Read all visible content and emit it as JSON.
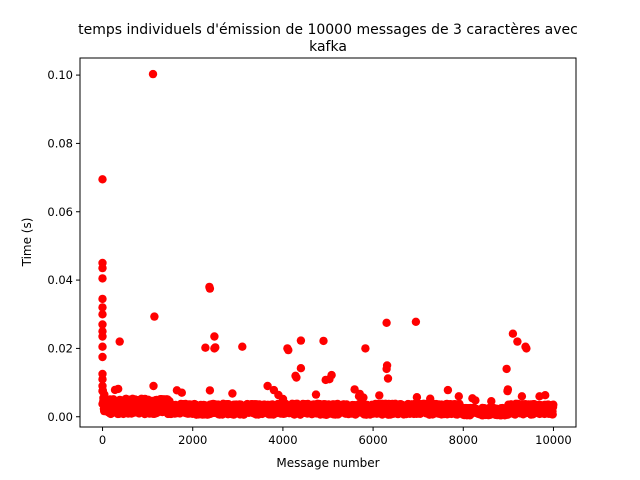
{
  "chart_data": {
    "type": "scatter",
    "title_lines": [
      "temps individuels d'émission de 10000 messages de 3 caractères avec",
      "kafka"
    ],
    "xlabel": "Message number",
    "ylabel": "Time (s)",
    "xlim": [
      -500,
      10500
    ],
    "ylim": [
      -0.003,
      0.105
    ],
    "xticks": [
      0,
      2000,
      4000,
      6000,
      8000,
      10000
    ],
    "xtick_labels": [
      "0",
      "2000",
      "4000",
      "6000",
      "8000",
      "10000"
    ],
    "yticks": [
      0.0,
      0.02,
      0.04,
      0.06,
      0.08,
      0.1
    ],
    "ytick_labels": [
      "0.00",
      "0.02",
      "0.04",
      "0.06",
      "0.08",
      "0.10"
    ],
    "grid": false,
    "marker_color": "#ff0000",
    "outliers": [
      [
        0,
        0.0695
      ],
      [
        0,
        0.045
      ],
      [
        0,
        0.0435
      ],
      [
        0,
        0.0405
      ],
      [
        0,
        0.0345
      ],
      [
        0,
        0.032
      ],
      [
        0,
        0.03
      ],
      [
        0,
        0.027
      ],
      [
        0,
        0.025
      ],
      [
        0,
        0.0235
      ],
      [
        0,
        0.0205
      ],
      [
        0,
        0.0175
      ],
      [
        0,
        0.0125
      ],
      [
        0,
        0.011
      ],
      [
        0,
        0.009
      ],
      [
        0,
        0.0075
      ],
      [
        40,
        0.0065
      ],
      [
        20,
        0.0055
      ],
      [
        380,
        0.022
      ],
      [
        1120,
        0.1003
      ],
      [
        1150,
        0.0293
      ],
      [
        1130,
        0.009
      ],
      [
        2280,
        0.0202
      ],
      [
        2370,
        0.038
      ],
      [
        2380,
        0.0375
      ],
      [
        2480,
        0.0235
      ],
      [
        2500,
        0.0203
      ],
      [
        2480,
        0.02
      ],
      [
        2380,
        0.0077
      ],
      [
        2880,
        0.0068
      ],
      [
        3100,
        0.0205
      ],
      [
        3660,
        0.009
      ],
      [
        3800,
        0.0078
      ],
      [
        4100,
        0.02
      ],
      [
        4120,
        0.0195
      ],
      [
        4280,
        0.012
      ],
      [
        4300,
        0.0115
      ],
      [
        4400,
        0.0223
      ],
      [
        4400,
        0.0142
      ],
      [
        4900,
        0.0222
      ],
      [
        4950,
        0.0108
      ],
      [
        5030,
        0.011
      ],
      [
        5080,
        0.0122
      ],
      [
        5590,
        0.008
      ],
      [
        5830,
        0.02
      ],
      [
        6300,
        0.0275
      ],
      [
        6310,
        0.015
      ],
      [
        6300,
        0.014
      ],
      [
        6330,
        0.0112
      ],
      [
        6950,
        0.0278
      ],
      [
        7660,
        0.0078
      ],
      [
        7900,
        0.006
      ],
      [
        8960,
        0.014
      ],
      [
        8990,
        0.008
      ],
      [
        8980,
        0.0075
      ],
      [
        9100,
        0.0243
      ],
      [
        9200,
        0.022
      ],
      [
        9380,
        0.0205
      ],
      [
        9400,
        0.02
      ],
      [
        9300,
        0.006
      ]
    ]
  }
}
